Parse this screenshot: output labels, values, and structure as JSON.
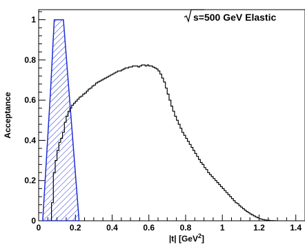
{
  "chart_data": {
    "type": "line",
    "title_prefix": "s",
    "title_rest": "=500 GeV Elastic",
    "xlabel_main": "|t| [GeV",
    "xlabel_sup": "2",
    "xlabel_close": "]",
    "ylabel": "Acceptance",
    "xlim": [
      0,
      1.45
    ],
    "ylim": [
      0,
      1.05
    ],
    "x_ticks": [
      0,
      0.2,
      0.4,
      0.6,
      0.8,
      1,
      1.2,
      1.4
    ],
    "x_tick_labels": [
      "0",
      "0.2",
      "0.4",
      "0.6",
      "0.8",
      "1",
      "1.2",
      "1.4"
    ],
    "y_ticks": [
      0,
      0.2,
      0.4,
      0.6,
      0.8,
      1
    ],
    "y_tick_labels": [
      "0",
      "0.2",
      "0.4",
      "0.6",
      "0.8",
      "1"
    ],
    "colors": {
      "histogram": "#000000",
      "band": "#1a2bd6"
    },
    "series": [
      {
        "kind": "histogram",
        "bin_width": 0.01,
        "x_start": 0.07,
        "values": [
          0.09,
          0.24,
          0.3,
          0.35,
          0.39,
          0.41,
          0.44,
          0.49,
          0.52,
          0.545,
          0.56,
          0.575,
          0.585,
          0.595,
          0.605,
          0.615,
          0.62,
          0.63,
          0.635,
          0.645,
          0.655,
          0.66,
          0.67,
          0.675,
          0.685,
          0.69,
          0.695,
          0.7,
          0.705,
          0.71,
          0.715,
          0.72,
          0.725,
          0.73,
          0.735,
          0.74,
          0.745,
          0.745,
          0.75,
          0.755,
          0.76,
          0.76,
          0.765,
          0.765,
          0.77,
          0.77,
          0.77,
          0.765,
          0.77,
          0.775,
          0.775,
          0.77,
          0.775,
          0.77,
          0.77,
          0.765,
          0.76,
          0.755,
          0.745,
          0.73,
          0.71,
          0.69,
          0.66,
          0.63,
          0.6,
          0.57,
          0.545,
          0.52,
          0.5,
          0.48,
          0.46,
          0.44,
          0.425,
          0.41,
          0.395,
          0.38,
          0.365,
          0.35,
          0.335,
          0.32,
          0.305,
          0.29,
          0.28,
          0.265,
          0.255,
          0.24,
          0.23,
          0.22,
          0.21,
          0.2,
          0.19,
          0.18,
          0.17,
          0.16,
          0.15,
          0.14,
          0.13,
          0.12,
          0.11,
          0.1,
          0.09,
          0.085,
          0.075,
          0.068,
          0.06,
          0.053,
          0.046,
          0.04,
          0.034,
          0.029,
          0.024,
          0.019,
          0.015,
          0.011,
          0.008,
          0.006,
          0.004,
          0.003,
          0.002,
          0.001,
          0.001,
          0.0005
        ]
      },
      {
        "kind": "band",
        "points": [
          [
            0.022,
            0
          ],
          [
            0.065,
            0.65
          ],
          [
            0.085,
            1.0
          ],
          [
            0.135,
            1.0
          ],
          [
            0.22,
            0
          ]
        ]
      }
    ]
  }
}
